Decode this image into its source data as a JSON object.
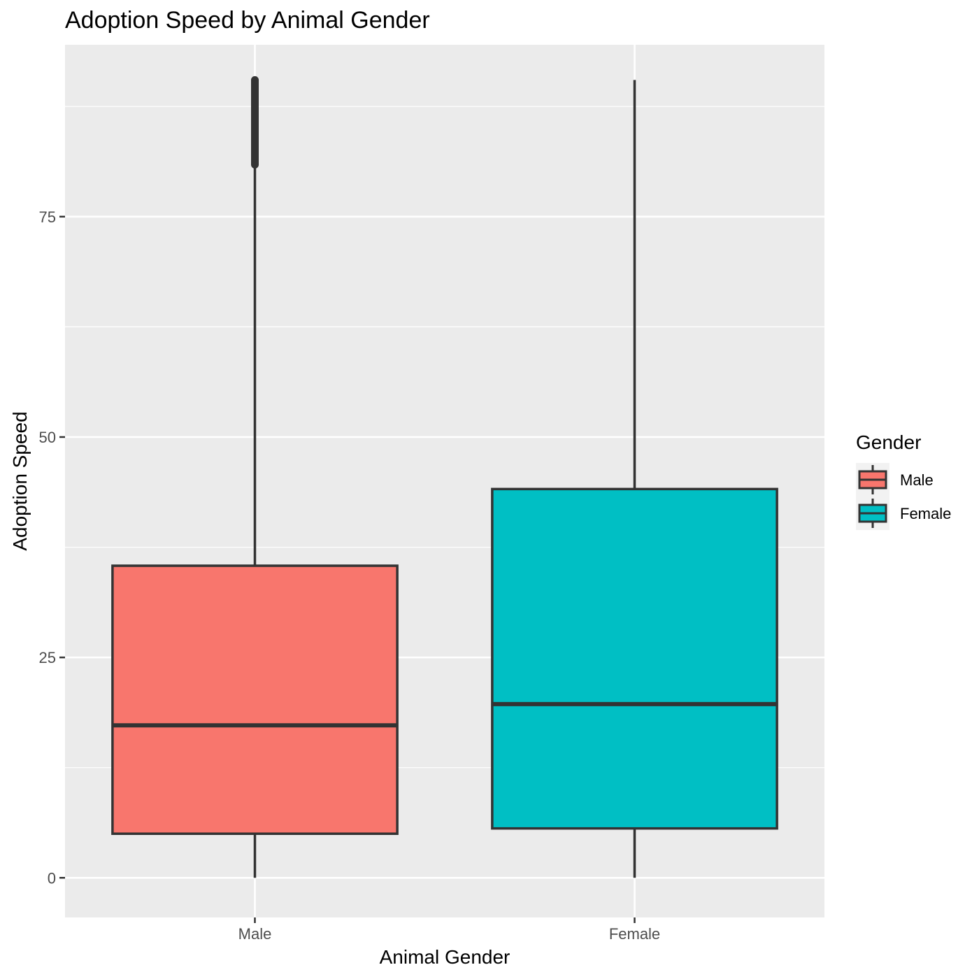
{
  "chart_data": {
    "type": "boxplot",
    "title": "Adoption Speed by Animal Gender",
    "xlabel": "Animal Gender",
    "ylabel": "Adoption Speed",
    "categories": [
      "Male",
      "Female"
    ],
    "ylim": [
      -4.5,
      94.5
    ],
    "y_ticks": [
      0,
      25,
      50,
      75
    ],
    "y_ticks_labels": [
      "0",
      "25",
      "50",
      "75"
    ],
    "y_minor_gridlines": [
      12.5,
      37.5,
      62.5,
      87.5
    ],
    "grid": true,
    "legend": {
      "title": "Gender",
      "position": "right",
      "entries": [
        "Male",
        "Female"
      ]
    },
    "series": [
      {
        "name": "Male",
        "color": "#F8766D",
        "min": 0,
        "q1": 5,
        "median": 17.3,
        "q3": 35.4,
        "whisker_high": 80.9,
        "outliers_range": [
          80.9,
          90.5
        ]
      },
      {
        "name": "Female",
        "color": "#00BFC4",
        "min": 0,
        "q1": 5.6,
        "median": 19.7,
        "q3": 44.1,
        "whisker_high": 90.5,
        "outliers_range": []
      }
    ]
  }
}
